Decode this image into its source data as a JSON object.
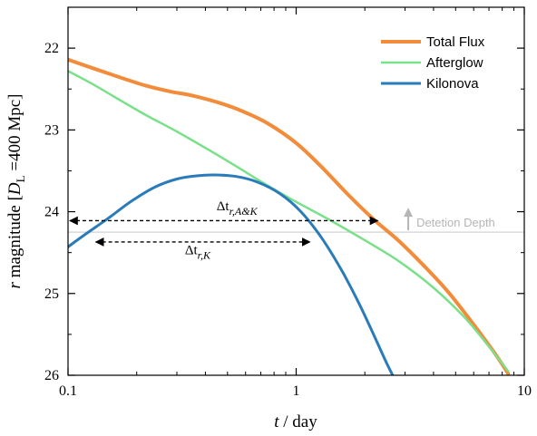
{
  "chart_data": {
    "type": "line",
    "xscale": "log",
    "xlim": [
      0.1,
      10
    ],
    "ylim": [
      26,
      21.5
    ],
    "yinverted": true,
    "xlabel_italic": "t",
    "xlabel_rest": " / day",
    "ylabel_italic": "r",
    "ylabel_mid": " magnitude [",
    "ylabel_D": "D",
    "ylabel_sub": "L",
    "ylabel_end": " =400 Mpc]",
    "xticks": [
      0.1,
      1,
      10
    ],
    "xtick_labels": [
      "0.1",
      "1",
      "10"
    ],
    "yticks": [
      22,
      23,
      24,
      25,
      26
    ],
    "ytick_labels": [
      "22",
      "23",
      "24",
      "25",
      "26"
    ],
    "legend_position": "top-right",
    "series": [
      {
        "name": "Total Flux",
        "color": "#F28C3A",
        "x": [
          0.1,
          0.13,
          0.17,
          0.22,
          0.28,
          0.35,
          0.45,
          0.58,
          0.75,
          1.0,
          1.3,
          1.7,
          2.2,
          2.8,
          3.6,
          4.6,
          6.0,
          7.5,
          8.5
        ],
        "y": [
          22.14,
          22.25,
          22.36,
          22.46,
          22.53,
          22.58,
          22.66,
          22.77,
          22.92,
          23.16,
          23.46,
          23.8,
          24.1,
          24.35,
          24.65,
          24.97,
          25.38,
          25.75,
          25.98
        ]
      },
      {
        "name": "Afterglow",
        "color": "#7BE08A",
        "x": [
          0.1,
          0.13,
          0.17,
          0.22,
          0.3,
          0.4,
          0.55,
          0.75,
          1.0,
          1.4,
          2.0,
          2.8,
          4.0,
          5.5,
          7.0,
          8.5
        ],
        "y": [
          22.28,
          22.45,
          22.64,
          22.82,
          23.02,
          23.22,
          23.45,
          23.68,
          23.88,
          24.1,
          24.35,
          24.6,
          24.93,
          25.3,
          25.65,
          25.95
        ]
      },
      {
        "name": "Kilonova",
        "color": "#2A7BBA",
        "x": [
          0.1,
          0.12,
          0.15,
          0.19,
          0.24,
          0.3,
          0.37,
          0.44,
          0.55,
          0.68,
          0.85,
          1.05,
          1.3,
          1.6,
          1.9,
          2.2,
          2.5,
          2.65
        ],
        "y": [
          24.43,
          24.27,
          24.08,
          23.87,
          23.7,
          23.6,
          23.56,
          23.55,
          23.57,
          23.64,
          23.78,
          24.0,
          24.33,
          24.74,
          25.14,
          25.52,
          25.86,
          26.0
        ]
      }
    ],
    "detection_depth": {
      "y": 24.25,
      "label": "Detetion Depth",
      "arrow_x": 3.1,
      "color": "#B5B5B5"
    },
    "annotations": [
      {
        "text_main": "Δt",
        "text_sub": "r,A&K",
        "x_start": 0.1,
        "x_end": 2.28,
        "y": 24.11,
        "label_x": 0.55,
        "label_y": 23.98
      },
      {
        "text_main": "Δt",
        "text_sub": "r,K",
        "x_start": 0.13,
        "x_end": 1.15,
        "y": 24.37,
        "label_x": 0.37,
        "label_y": 24.52
      }
    ]
  }
}
